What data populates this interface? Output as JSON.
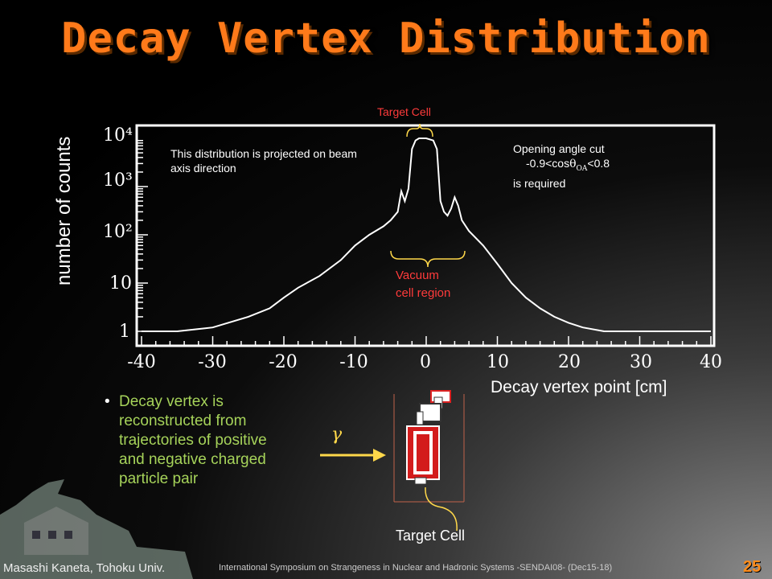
{
  "slide": {
    "title": "Decay Vertex Distribution",
    "page_number": "25"
  },
  "chart_data": {
    "type": "line",
    "xlabel": "Decay vertex point [cm]",
    "ylabel": "number of counts",
    "xlim": [
      -40,
      40
    ],
    "ylim": [
      1,
      10000
    ],
    "yscale": "log",
    "x_ticks": [
      "-40",
      "-30",
      "-20",
      "-10",
      "0",
      "10",
      "20",
      "30",
      "40"
    ],
    "y_ticks": [
      "1",
      "10",
      "10²",
      "10³",
      "10⁴"
    ],
    "x": [
      -40,
      -35,
      -30,
      -25,
      -22,
      -20,
      -18,
      -15,
      -12,
      -10,
      -8,
      -6,
      -5,
      -4,
      -3.5,
      -3,
      -2.5,
      -2,
      -1.5,
      -1,
      0,
      1,
      1.5,
      2,
      2.5,
      3,
      3.5,
      4,
      4.5,
      5,
      6,
      8,
      10,
      12,
      14,
      16,
      18,
      20,
      22,
      25,
      30,
      35,
      40
    ],
    "y": [
      1,
      1,
      1.2,
      2,
      3,
      5,
      8,
      14,
      30,
      60,
      100,
      150,
      200,
      300,
      800,
      500,
      900,
      6000,
      9000,
      10000,
      10000,
      9000,
      6000,
      500,
      300,
      250,
      350,
      600,
      400,
      200,
      120,
      60,
      25,
      10,
      5,
      3,
      2,
      1.5,
      1.2,
      1,
      1,
      1,
      1
    ],
    "annotations": {
      "projection_note": "This distribution is projected on beam axis direction",
      "target_cell": "Target Cell",
      "vacuum_region": "Vacuum cell region",
      "cut_line1": "Opening angle cut",
      "cut_line2_pre": "-0.9<cos",
      "cut_theta": "θ",
      "cut_sub": "OA",
      "cut_line2_post": "<0.8",
      "cut_line3": "is required"
    }
  },
  "body": {
    "bullet_text": "Decay vertex is reconstructed from trajectories of positive and negative charged particle pair",
    "gamma_symbol": "γ",
    "target_cell_label": "Target Cell"
  },
  "footer": {
    "author": "Masashi Kaneta, Tohoku Univ.",
    "conference": "International Symposium on Strangeness in Nuclear and Hadronic Systems -SENDAI08- (Dec15-18)"
  },
  "colors": {
    "title": "#ff7a1a",
    "annotation_red": "#ff3b3b",
    "bullet_green": "#a6d35a",
    "arrow_yellow": "#ffd84a",
    "pagenum": "#ff8c1a"
  }
}
